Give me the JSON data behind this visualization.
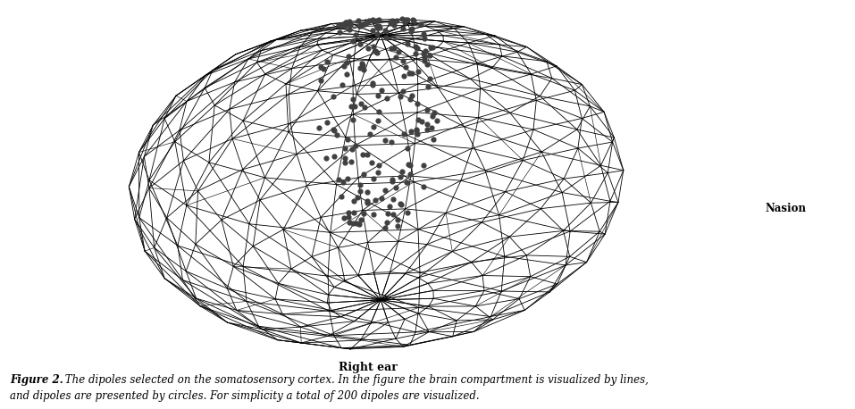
{
  "right_ear_label": "Right ear",
  "nasion_label": "Nasion",
  "caption_bold": "Figure 2.",
  "caption_line1": " The dipoles selected on the somatosensory cortex. In the figure the brain compartment is visualized by lines,",
  "caption_line2": "and dipoles are presented by circles. For simplicity a total of 200 dipoles are visualized.",
  "background_color": "#ffffff",
  "mesh_color": "#000000",
  "dot_color": "#404040",
  "n_dipoles": 200,
  "seed": 42,
  "fig_width": 9.57,
  "fig_height": 4.58,
  "dpi": 100,
  "cam_dist": 5.0,
  "cam_elev": 0.55,
  "cam_azim": 0.18,
  "ellipsoid_a": 1.35,
  "ellipsoid_b": 1.0,
  "ellipsoid_c": 0.85,
  "n_lat": 14,
  "n_lon": 20
}
